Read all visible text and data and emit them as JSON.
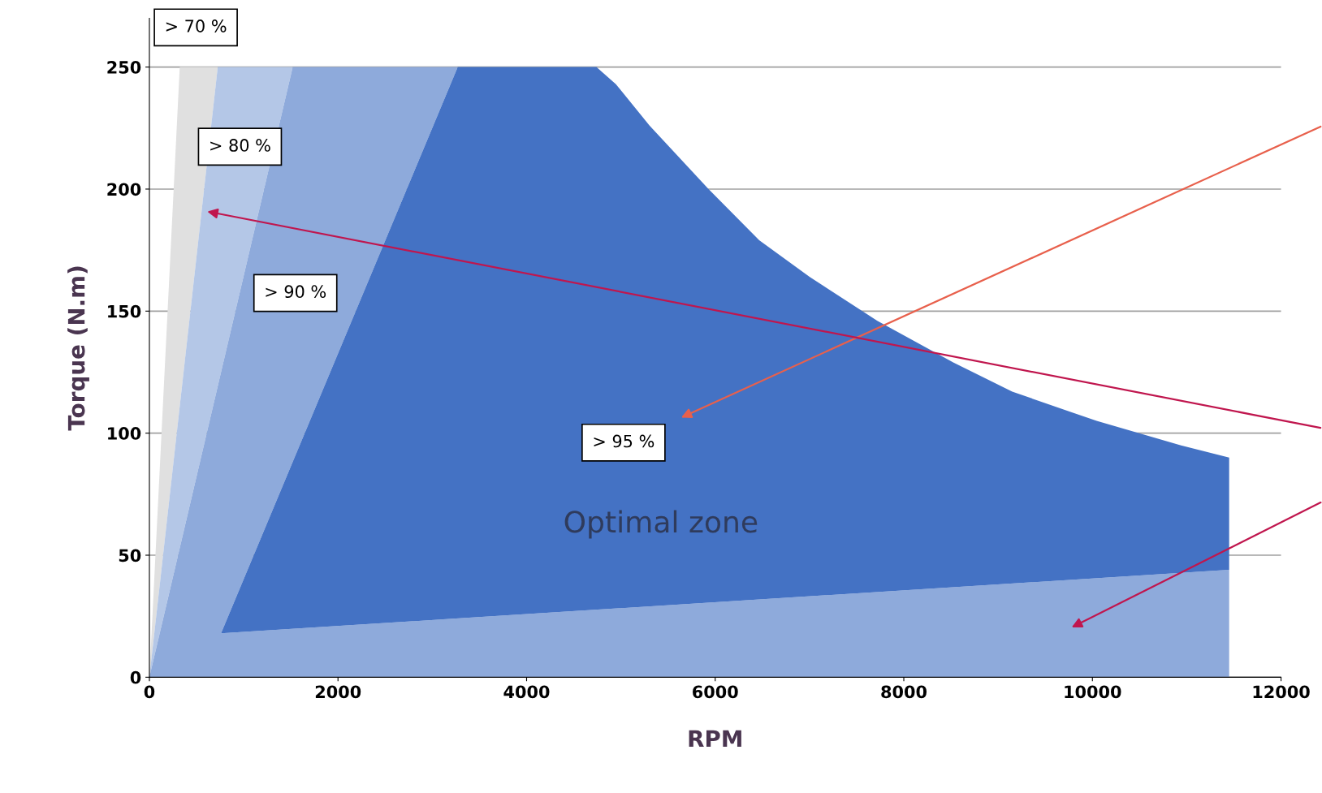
{
  "chart_data": {
    "type": "area",
    "xlabel": "RPM",
    "ylabel": "Torque (N.m)",
    "xlim": [
      0,
      12000
    ],
    "xticks": [
      0,
      2000,
      4000,
      6000,
      8000,
      10000,
      12000
    ],
    "ylim": [
      0,
      270
    ],
    "yticks": [
      0,
      50,
      100,
      150,
      200,
      250
    ],
    "grid": "y",
    "series": [
      {
        "color": "#e0e0e0",
        "x": [
          0,
          322,
          725,
          0
        ],
        "values": [
          0,
          250,
          250,
          0
        ]
      },
      {
        "color": "#b4c7e7",
        "x": [
          0,
          725,
          1520,
          0
        ],
        "values": [
          0,
          250,
          250,
          0
        ]
      },
      {
        "color": "#8eaadb",
        "x": [
          0,
          1520,
          3270,
          760,
          11450,
          11450,
          0
        ],
        "values": [
          0,
          250,
          250,
          18,
          44,
          0,
          0
        ]
      },
      {
        "color": "#4472c4",
        "x": [
          760,
          3270,
          4740,
          4947,
          5304,
          5930,
          6467,
          7003,
          7719,
          8524,
          9150,
          10045,
          10940,
          11450,
          11450,
          760
        ],
        "values": [
          18,
          250,
          250,
          243,
          226,
          200,
          179,
          164,
          146,
          129,
          117,
          105,
          95,
          90,
          44,
          18
        ]
      }
    ],
    "annotations": [
      "> 70 %",
      "> 80 %",
      "> 90 %",
      "> 95 %",
      "Optimal zone"
    ]
  }
}
